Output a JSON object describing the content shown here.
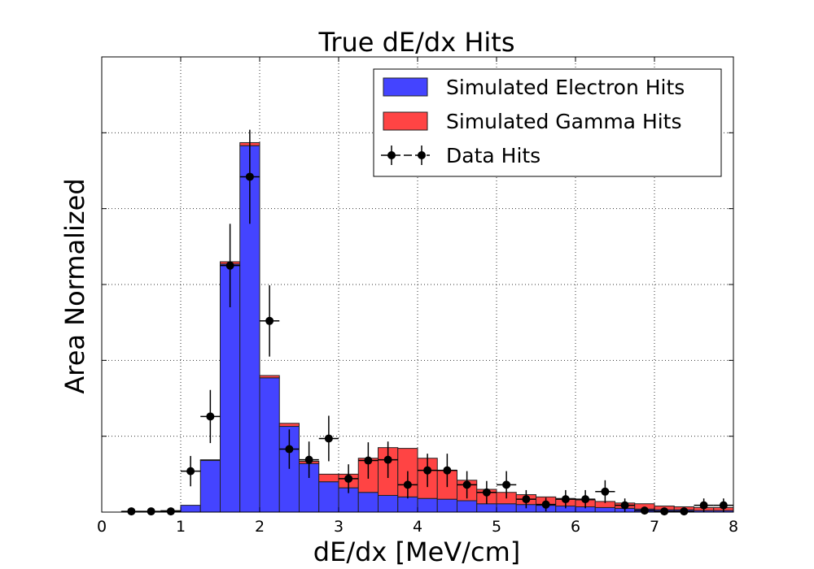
{
  "chart_data": {
    "type": "bar",
    "stacked": true,
    "title": "True dE/dx Hits",
    "xlabel": "dE/dx [MeV/cm]",
    "ylabel": "Area Normalized",
    "xlim": [
      0,
      8
    ],
    "ylim": [
      0,
      0.6
    ],
    "grid": true,
    "legend_position": "top-right",
    "x_ticks": [
      "0",
      "1",
      "2",
      "3",
      "4",
      "5",
      "6",
      "7",
      "8"
    ],
    "y_tick_values": [
      0.1,
      0.2,
      0.3,
      0.4,
      0.5
    ],
    "bin_width": 0.25,
    "bin_edges": [
      0.0,
      0.25,
      0.5,
      0.75,
      1.0,
      1.25,
      1.5,
      1.75,
      2.0,
      2.25,
      2.5,
      2.75,
      3.0,
      3.25,
      3.5,
      3.75,
      4.0,
      4.25,
      4.5,
      4.75,
      5.0,
      5.25,
      5.5,
      5.75,
      6.0,
      6.25,
      6.5,
      6.75,
      7.0,
      7.25,
      7.5,
      7.75,
      8.0
    ],
    "series": [
      {
        "name": "Simulated Electron Hits",
        "kind": "stacked-histogram",
        "color": "#4444ff",
        "values": [
          0.0,
          0.001,
          0.001,
          0.002,
          0.009,
          0.068,
          0.327,
          0.483,
          0.177,
          0.113,
          0.064,
          0.04,
          0.032,
          0.026,
          0.022,
          0.02,
          0.018,
          0.017,
          0.015,
          0.011,
          0.011,
          0.01,
          0.009,
          0.008,
          0.007,
          0.006,
          0.005,
          0.004,
          0.003,
          0.003,
          0.002,
          0.002
        ]
      },
      {
        "name": "Simulated Gamma Hits",
        "kind": "stacked-histogram",
        "color": "#ff4444",
        "values": [
          0.0,
          0.0,
          0.0,
          0.0,
          0.0,
          0.001,
          0.003,
          0.004,
          0.003,
          0.004,
          0.003,
          0.01,
          0.018,
          0.045,
          0.063,
          0.064,
          0.053,
          0.038,
          0.027,
          0.019,
          0.015,
          0.013,
          0.011,
          0.01,
          0.009,
          0.008,
          0.007,
          0.007,
          0.005,
          0.004,
          0.004,
          0.004
        ]
      },
      {
        "name": "Data Hits",
        "kind": "errorbar",
        "color": "#000000",
        "x": [
          0.375,
          0.625,
          0.875,
          1.125,
          1.375,
          1.625,
          1.875,
          2.125,
          2.375,
          2.625,
          2.875,
          3.125,
          3.375,
          3.625,
          3.875,
          4.125,
          4.375,
          4.625,
          4.875,
          5.125,
          5.375,
          5.625,
          5.875,
          6.125,
          6.375,
          6.625,
          6.875,
          7.125,
          7.375,
          7.625,
          7.875
        ],
        "values": [
          0.001,
          0.001,
          0.001,
          0.054,
          0.126,
          0.325,
          0.442,
          0.252,
          0.083,
          0.069,
          0.097,
          0.044,
          0.068,
          0.069,
          0.036,
          0.055,
          0.055,
          0.036,
          0.026,
          0.036,
          0.017,
          0.01,
          0.017,
          0.017,
          0.027,
          0.009,
          0.002,
          0.001,
          0.001,
          0.009,
          0.009
        ],
        "errors": [
          0.001,
          0.001,
          0.001,
          0.02,
          0.035,
          0.055,
          0.062,
          0.047,
          0.026,
          0.024,
          0.03,
          0.019,
          0.024,
          0.024,
          0.018,
          0.022,
          0.022,
          0.018,
          0.015,
          0.018,
          0.012,
          0.009,
          0.012,
          0.012,
          0.015,
          0.009,
          0.004,
          0.003,
          0.003,
          0.009,
          0.009
        ]
      }
    ]
  }
}
